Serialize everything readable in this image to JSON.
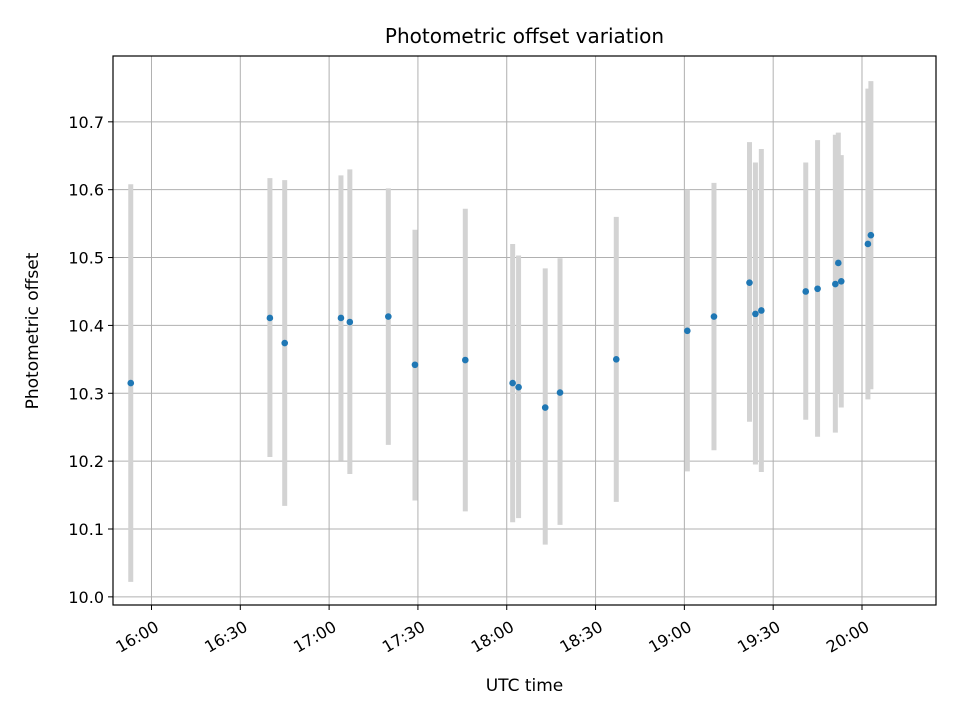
{
  "chart_data": {
    "type": "scatter",
    "title": "Photometric offset variation",
    "xlabel": "UTC time",
    "ylabel": "Photometric offset",
    "grid": true,
    "x_ticks": [
      "16:00",
      "16:30",
      "17:00",
      "17:30",
      "18:00",
      "18:30",
      "19:00",
      "19:30",
      "20:00"
    ],
    "y_ticks": [
      "10.0",
      "10.1",
      "10.2",
      "10.3",
      "10.4",
      "10.5",
      "10.6",
      "10.7"
    ],
    "xlim": [
      "15:47",
      "20:25"
    ],
    "ylim": [
      9.988,
      10.797
    ],
    "colors": {
      "points": "#1f77b4",
      "errorbars": "#d3d3d3",
      "grid": "#b0b0b0"
    },
    "points": [
      {
        "x": "15:53",
        "y": 10.315,
        "err": [
          10.022,
          10.608
        ]
      },
      {
        "x": "16:40",
        "y": 10.411,
        "err": [
          10.206,
          10.617
        ]
      },
      {
        "x": "16:45",
        "y": 10.374,
        "err": [
          10.134,
          10.614
        ]
      },
      {
        "x": "17:04",
        "y": 10.411,
        "err": [
          10.201,
          10.621
        ]
      },
      {
        "x": "17:07",
        "y": 10.405,
        "err": [
          10.181,
          10.63
        ]
      },
      {
        "x": "17:20",
        "y": 10.413,
        "err": [
          10.224,
          10.602
        ]
      },
      {
        "x": "17:29",
        "y": 10.342,
        "err": [
          10.142,
          10.541
        ]
      },
      {
        "x": "17:46",
        "y": 10.349,
        "err": [
          10.126,
          10.572
        ]
      },
      {
        "x": "18:02",
        "y": 10.315,
        "err": [
          10.11,
          10.52
        ]
      },
      {
        "x": "18:04",
        "y": 10.309,
        "err": [
          10.116,
          10.503
        ]
      },
      {
        "x": "18:13",
        "y": 10.279,
        "err": [
          10.077,
          10.484
        ]
      },
      {
        "x": "18:18",
        "y": 10.301,
        "err": [
          10.106,
          10.499
        ]
      },
      {
        "x": "18:37",
        "y": 10.35,
        "err": [
          10.14,
          10.56
        ]
      },
      {
        "x": "19:01",
        "y": 10.392,
        "err": [
          10.185,
          10.6
        ]
      },
      {
        "x": "19:10",
        "y": 10.413,
        "err": [
          10.216,
          10.61
        ]
      },
      {
        "x": "19:22",
        "y": 10.463,
        "err": [
          10.258,
          10.67
        ]
      },
      {
        "x": "19:24",
        "y": 10.417,
        "err": [
          10.195,
          10.64
        ]
      },
      {
        "x": "19:26",
        "y": 10.422,
        "err": [
          10.184,
          10.66
        ]
      },
      {
        "x": "19:41",
        "y": 10.45,
        "err": [
          10.261,
          10.64
        ]
      },
      {
        "x": "19:45",
        "y": 10.454,
        "err": [
          10.236,
          10.673
        ]
      },
      {
        "x": "19:51",
        "y": 10.461,
        "err": [
          10.242,
          10.681
        ]
      },
      {
        "x": "19:52",
        "y": 10.492,
        "err": [
          10.3,
          10.684
        ]
      },
      {
        "x": "19:53",
        "y": 10.465,
        "err": [
          10.279,
          10.651
        ]
      },
      {
        "x": "20:02",
        "y": 10.52,
        "err": [
          10.291,
          10.749
        ]
      },
      {
        "x": "20:03",
        "y": 10.533,
        "err": [
          10.306,
          10.76
        ]
      }
    ]
  }
}
